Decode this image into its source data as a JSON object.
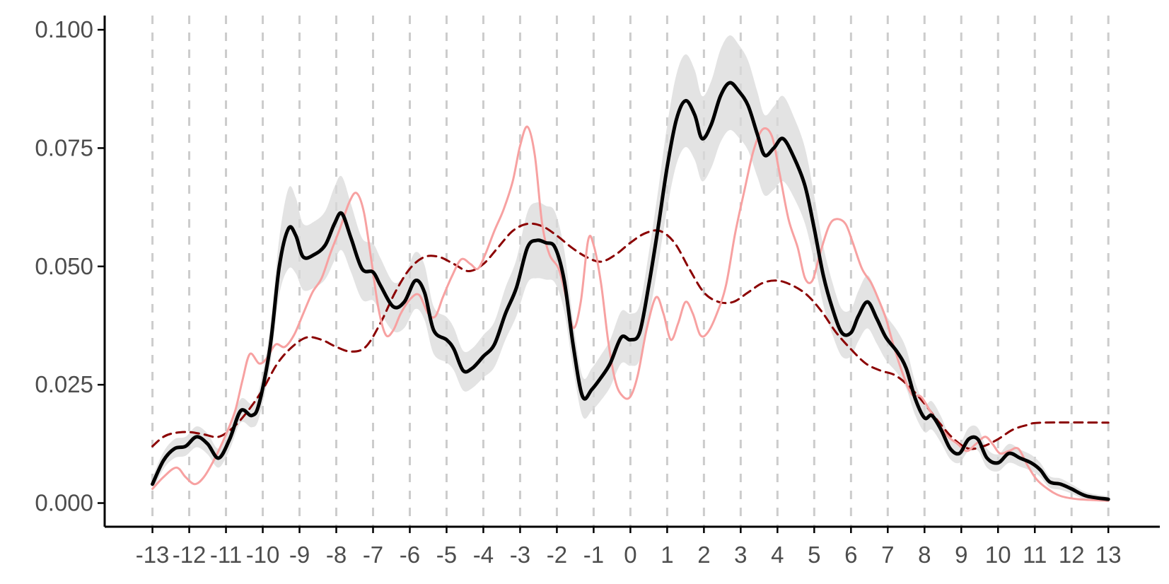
{
  "chart_data": {
    "type": "line",
    "title": "",
    "xlabel": "",
    "ylabel": "",
    "xlim": [
      -14.3,
      14.4
    ],
    "ylim": [
      -0.005,
      0.103
    ],
    "x_ticks": [
      -13,
      -12,
      -11,
      -10,
      -9,
      -8,
      -7,
      -6,
      -5,
      -4,
      -3,
      -2,
      -1,
      0,
      1,
      2,
      3,
      4,
      5,
      6,
      7,
      8,
      9,
      10,
      11,
      12,
      13
    ],
    "x_tick_labels": [
      "-13",
      "-12",
      "-11",
      "-10",
      "-9",
      "-8",
      "-7",
      "-6",
      "-5",
      "-4",
      "-3",
      "-2",
      "-1",
      "0",
      "1",
      "2",
      "3",
      "4",
      "5",
      "6",
      "7",
      "8",
      "9",
      "10",
      "11",
      "12",
      "13"
    ],
    "y_ticks": [
      0,
      0.025,
      0.05,
      0.075,
      0.1
    ],
    "y_tick_labels": [
      "0.000",
      "0.025",
      "0.050",
      "0.075",
      "0.100"
    ],
    "vertical_dashed_gridlines": true,
    "legend": "none",
    "colors": {
      "main": "#000000",
      "band": "#d9d9d9",
      "pink": "#f7a1a1",
      "dashed": "#8b0000",
      "gridline": "#cccccc",
      "axis": "#000000"
    },
    "series": [
      {
        "style": "solid-black-with-band",
        "points": [
          [
            -13,
            0.004
          ],
          [
            -12.7,
            0.009
          ],
          [
            -12.4,
            0.0115
          ],
          [
            -12.1,
            0.012
          ],
          [
            -11.8,
            0.014
          ],
          [
            -11.5,
            0.0125
          ],
          [
            -11.2,
            0.0095
          ],
          [
            -10.9,
            0.0135
          ],
          [
            -10.6,
            0.0195
          ],
          [
            -10.3,
            0.0185
          ],
          [
            -10.1,
            0.021
          ],
          [
            -9.8,
            0.033
          ],
          [
            -9.55,
            0.05
          ],
          [
            -9.3,
            0.058
          ],
          [
            -9.1,
            0.0565
          ],
          [
            -8.9,
            0.052
          ],
          [
            -8.6,
            0.0525
          ],
          [
            -8.3,
            0.0545
          ],
          [
            -8.05,
            0.059
          ],
          [
            -7.85,
            0.0612
          ],
          [
            -7.6,
            0.056
          ],
          [
            -7.3,
            0.0495
          ],
          [
            -7.0,
            0.0488
          ],
          [
            -6.8,
            0.046
          ],
          [
            -6.45,
            0.0415
          ],
          [
            -6.15,
            0.0425
          ],
          [
            -5.85,
            0.047
          ],
          [
            -5.6,
            0.0445
          ],
          [
            -5.35,
            0.0365
          ],
          [
            -5.0,
            0.0345
          ],
          [
            -4.8,
            0.0325
          ],
          [
            -4.55,
            0.028
          ],
          [
            -4.3,
            0.0285
          ],
          [
            -4.0,
            0.031
          ],
          [
            -3.7,
            0.0335
          ],
          [
            -3.4,
            0.04
          ],
          [
            -3.1,
            0.0455
          ],
          [
            -2.8,
            0.054
          ],
          [
            -2.55,
            0.0555
          ],
          [
            -2.3,
            0.055
          ],
          [
            -2.05,
            0.054
          ],
          [
            -1.8,
            0.047
          ],
          [
            -1.55,
            0.033
          ],
          [
            -1.3,
            0.0225
          ],
          [
            -1.05,
            0.024
          ],
          [
            -0.8,
            0.0265
          ],
          [
            -0.55,
            0.0295
          ],
          [
            -0.25,
            0.035
          ],
          [
            0.0,
            0.0345
          ],
          [
            0.25,
            0.036
          ],
          [
            0.5,
            0.046
          ],
          [
            0.75,
            0.058
          ],
          [
            1.0,
            0.071
          ],
          [
            1.25,
            0.081
          ],
          [
            1.5,
            0.085
          ],
          [
            1.75,
            0.082
          ],
          [
            1.95,
            0.077
          ],
          [
            2.2,
            0.08
          ],
          [
            2.45,
            0.086
          ],
          [
            2.7,
            0.0888
          ],
          [
            2.95,
            0.087
          ],
          [
            3.2,
            0.084
          ],
          [
            3.45,
            0.078
          ],
          [
            3.65,
            0.0735
          ],
          [
            3.9,
            0.075
          ],
          [
            4.15,
            0.077
          ],
          [
            4.45,
            0.073
          ],
          [
            4.75,
            0.067
          ],
          [
            5.0,
            0.058
          ],
          [
            5.25,
            0.048
          ],
          [
            5.5,
            0.041
          ],
          [
            5.75,
            0.036
          ],
          [
            6.0,
            0.036
          ],
          [
            6.2,
            0.0395
          ],
          [
            6.45,
            0.0425
          ],
          [
            6.7,
            0.039
          ],
          [
            6.95,
            0.035
          ],
          [
            7.25,
            0.032
          ],
          [
            7.5,
            0.0285
          ],
          [
            7.75,
            0.022
          ],
          [
            8.0,
            0.018
          ],
          [
            8.2,
            0.0185
          ],
          [
            8.45,
            0.0155
          ],
          [
            8.7,
            0.0115
          ],
          [
            8.95,
            0.0105
          ],
          [
            9.2,
            0.0135
          ],
          [
            9.45,
            0.0135
          ],
          [
            9.7,
            0.0095
          ],
          [
            10.0,
            0.0085
          ],
          [
            10.3,
            0.0105
          ],
          [
            10.6,
            0.0095
          ],
          [
            10.9,
            0.0085
          ],
          [
            11.15,
            0.007
          ],
          [
            11.4,
            0.0045
          ],
          [
            11.7,
            0.004
          ],
          [
            12.0,
            0.003
          ],
          [
            12.4,
            0.0015
          ],
          [
            13,
            0.0008
          ]
        ],
        "band_halfwidth": [
          0.0015,
          0.0018,
          0.002,
          0.002,
          0.0022,
          0.0022,
          0.002,
          0.0022,
          0.0025,
          0.0025,
          0.003,
          0.004,
          0.006,
          0.0085,
          0.008,
          0.007,
          0.007,
          0.0072,
          0.0078,
          0.0078,
          0.0072,
          0.0065,
          0.006,
          0.0058,
          0.0052,
          0.0055,
          0.006,
          0.0058,
          0.005,
          0.0048,
          0.0045,
          0.0042,
          0.0042,
          0.0045,
          0.0048,
          0.0055,
          0.006,
          0.0075,
          0.008,
          0.0078,
          0.0075,
          0.0065,
          0.005,
          0.0042,
          0.0045,
          0.0048,
          0.005,
          0.0055,
          0.0055,
          0.0058,
          0.0068,
          0.0078,
          0.0088,
          0.0095,
          0.0098,
          0.0095,
          0.009,
          0.0092,
          0.0098,
          0.01,
          0.0098,
          0.0095,
          0.009,
          0.0085,
          0.0088,
          0.009,
          0.0085,
          0.008,
          0.007,
          0.0062,
          0.0055,
          0.005,
          0.005,
          0.0053,
          0.0056,
          0.0053,
          0.0048,
          0.0045,
          0.0042,
          0.0035,
          0.003,
          0.003,
          0.0028,
          0.0022,
          0.002,
          0.0024,
          0.0024,
          0.002,
          0.0018,
          0.002,
          0.0018,
          0.0017,
          0.0015,
          0.0012,
          0.0012,
          0.001,
          0.0008,
          0.0006
        ]
      },
      {
        "style": "solid-pink",
        "points": [
          [
            -13,
            0.003
          ],
          [
            -12.7,
            0.0055
          ],
          [
            -12.35,
            0.0075
          ],
          [
            -12.1,
            0.0055
          ],
          [
            -11.85,
            0.004
          ],
          [
            -11.6,
            0.0055
          ],
          [
            -11.3,
            0.0095
          ],
          [
            -11.0,
            0.0145
          ],
          [
            -10.75,
            0.0195
          ],
          [
            -10.55,
            0.026
          ],
          [
            -10.35,
            0.0315
          ],
          [
            -10.1,
            0.0295
          ],
          [
            -9.9,
            0.0305
          ],
          [
            -9.65,
            0.0335
          ],
          [
            -9.4,
            0.033
          ],
          [
            -9.15,
            0.0355
          ],
          [
            -8.9,
            0.04
          ],
          [
            -8.65,
            0.0445
          ],
          [
            -8.4,
            0.0475
          ],
          [
            -8.15,
            0.053
          ],
          [
            -7.9,
            0.058
          ],
          [
            -7.65,
            0.0635
          ],
          [
            -7.45,
            0.0655
          ],
          [
            -7.25,
            0.0615
          ],
          [
            -7.05,
            0.0515
          ],
          [
            -6.85,
            0.041
          ],
          [
            -6.65,
            0.0355
          ],
          [
            -6.45,
            0.0365
          ],
          [
            -6.25,
            0.04
          ],
          [
            -6.0,
            0.043
          ],
          [
            -5.75,
            0.044
          ],
          [
            -5.5,
            0.04
          ],
          [
            -5.3,
            0.0395
          ],
          [
            -5.1,
            0.0435
          ],
          [
            -4.85,
            0.048
          ],
          [
            -4.6,
            0.0515
          ],
          [
            -4.35,
            0.0505
          ],
          [
            -4.15,
            0.0495
          ],
          [
            -3.95,
            0.0525
          ],
          [
            -3.7,
            0.0575
          ],
          [
            -3.45,
            0.062
          ],
          [
            -3.2,
            0.068
          ],
          [
            -3.0,
            0.0755
          ],
          [
            -2.8,
            0.0795
          ],
          [
            -2.6,
            0.0735
          ],
          [
            -2.4,
            0.059
          ],
          [
            -2.2,
            0.0525
          ],
          [
            -1.95,
            0.0495
          ],
          [
            -1.75,
            0.0435
          ],
          [
            -1.55,
            0.037
          ],
          [
            -1.35,
            0.0425
          ],
          [
            -1.15,
            0.0555
          ],
          [
            -1.0,
            0.0545
          ],
          [
            -0.8,
            0.0465
          ],
          [
            -0.6,
            0.034
          ],
          [
            -0.4,
            0.0255
          ],
          [
            -0.2,
            0.0225
          ],
          [
            0.0,
            0.0225
          ],
          [
            0.2,
            0.027
          ],
          [
            0.45,
            0.037
          ],
          [
            0.7,
            0.0435
          ],
          [
            0.9,
            0.04
          ],
          [
            1.1,
            0.0345
          ],
          [
            1.3,
            0.038
          ],
          [
            1.5,
            0.0425
          ],
          [
            1.7,
            0.04
          ],
          [
            1.9,
            0.0355
          ],
          [
            2.1,
            0.036
          ],
          [
            2.35,
            0.04
          ],
          [
            2.6,
            0.046
          ],
          [
            2.85,
            0.057
          ],
          [
            3.1,
            0.066
          ],
          [
            3.35,
            0.0745
          ],
          [
            3.6,
            0.079
          ],
          [
            3.85,
            0.0775
          ],
          [
            4.05,
            0.07
          ],
          [
            4.3,
            0.06
          ],
          [
            4.55,
            0.054
          ],
          [
            4.75,
            0.0475
          ],
          [
            4.95,
            0.047
          ],
          [
            5.15,
            0.0525
          ],
          [
            5.4,
            0.0585
          ],
          [
            5.6,
            0.06
          ],
          [
            5.85,
            0.059
          ],
          [
            6.05,
            0.055
          ],
          [
            6.3,
            0.0495
          ],
          [
            6.55,
            0.0465
          ],
          [
            6.75,
            0.043
          ],
          [
            6.95,
            0.039
          ],
          [
            7.15,
            0.0335
          ],
          [
            7.4,
            0.0275
          ],
          [
            7.65,
            0.023
          ],
          [
            7.9,
            0.0225
          ],
          [
            8.15,
            0.0195
          ],
          [
            8.4,
            0.0165
          ],
          [
            8.65,
            0.014
          ],
          [
            8.9,
            0.0125
          ],
          [
            9.15,
            0.011
          ],
          [
            9.4,
            0.0125
          ],
          [
            9.65,
            0.014
          ],
          [
            9.85,
            0.0125
          ],
          [
            10.05,
            0.0105
          ],
          [
            10.3,
            0.011
          ],
          [
            10.55,
            0.0115
          ],
          [
            10.8,
            0.008
          ],
          [
            11.05,
            0.005
          ],
          [
            11.35,
            0.003
          ],
          [
            11.7,
            0.0015
          ],
          [
            12.2,
            0.0008
          ],
          [
            13,
            0.0005
          ]
        ]
      },
      {
        "style": "dashed-darkred",
        "points": [
          [
            -13,
            0.012
          ],
          [
            -12.7,
            0.014
          ],
          [
            -12.4,
            0.0148
          ],
          [
            -12.0,
            0.015
          ],
          [
            -11.6,
            0.0145
          ],
          [
            -11.2,
            0.014
          ],
          [
            -10.8,
            0.016
          ],
          [
            -10.4,
            0.0195
          ],
          [
            -10.0,
            0.024
          ],
          [
            -9.6,
            0.0295
          ],
          [
            -9.2,
            0.033
          ],
          [
            -8.8,
            0.035
          ],
          [
            -8.4,
            0.0345
          ],
          [
            -8.0,
            0.033
          ],
          [
            -7.6,
            0.032
          ],
          [
            -7.2,
            0.033
          ],
          [
            -6.8,
            0.038
          ],
          [
            -6.4,
            0.0445
          ],
          [
            -6.0,
            0.0495
          ],
          [
            -5.6,
            0.052
          ],
          [
            -5.2,
            0.052
          ],
          [
            -4.8,
            0.0505
          ],
          [
            -4.4,
            0.049
          ],
          [
            -4.0,
            0.0505
          ],
          [
            -3.6,
            0.054
          ],
          [
            -3.2,
            0.0575
          ],
          [
            -2.8,
            0.059
          ],
          [
            -2.4,
            0.0585
          ],
          [
            -2.0,
            0.0565
          ],
          [
            -1.6,
            0.054
          ],
          [
            -1.2,
            0.052
          ],
          [
            -0.8,
            0.051
          ],
          [
            -0.4,
            0.0525
          ],
          [
            0.0,
            0.055
          ],
          [
            0.4,
            0.057
          ],
          [
            0.8,
            0.0575
          ],
          [
            1.2,
            0.055
          ],
          [
            1.6,
            0.0495
          ],
          [
            2.0,
            0.0445
          ],
          [
            2.4,
            0.0425
          ],
          [
            2.8,
            0.0425
          ],
          [
            3.2,
            0.0445
          ],
          [
            3.6,
            0.0465
          ],
          [
            4.0,
            0.047
          ],
          [
            4.4,
            0.046
          ],
          [
            4.8,
            0.044
          ],
          [
            5.2,
            0.0405
          ],
          [
            5.6,
            0.036
          ],
          [
            6.0,
            0.0325
          ],
          [
            6.4,
            0.0295
          ],
          [
            6.8,
            0.028
          ],
          [
            7.2,
            0.027
          ],
          [
            7.6,
            0.0245
          ],
          [
            8.0,
            0.021
          ],
          [
            8.4,
            0.017
          ],
          [
            8.8,
            0.0135
          ],
          [
            9.2,
            0.0115
          ],
          [
            9.6,
            0.012
          ],
          [
            10.0,
            0.0135
          ],
          [
            10.4,
            0.0155
          ],
          [
            10.8,
            0.0165
          ],
          [
            11.2,
            0.017
          ],
          [
            13,
            0.017
          ]
        ]
      }
    ]
  }
}
